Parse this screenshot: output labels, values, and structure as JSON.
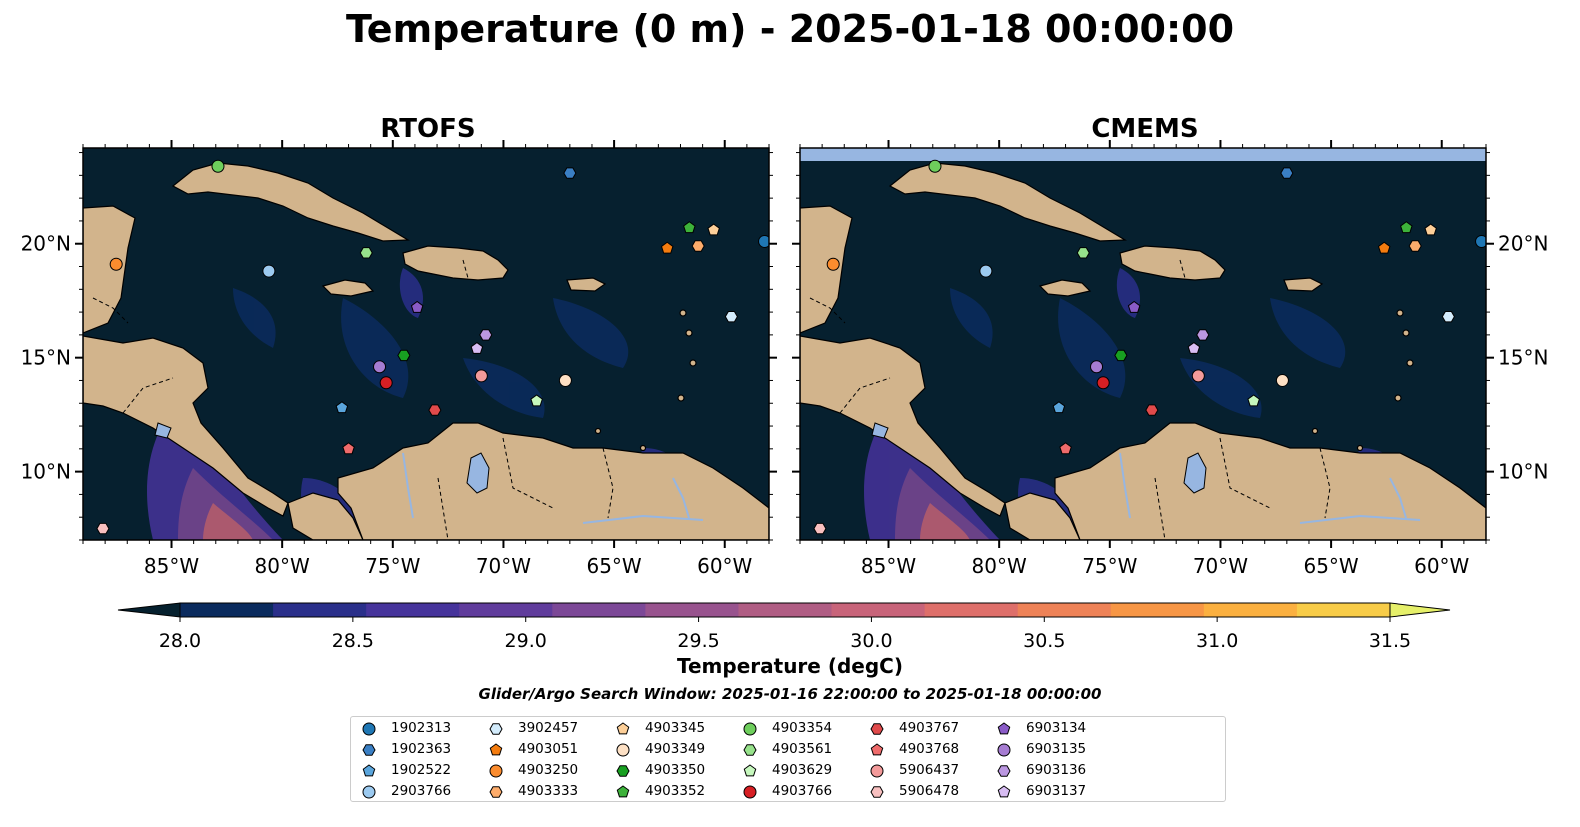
{
  "title": "Temperature (0 m) - 2025-01-18 00:00:00",
  "panels": [
    {
      "title": "RTOFS",
      "top_band": false
    },
    {
      "title": "CMEMS",
      "top_band": true
    }
  ],
  "map": {
    "lon_range": [
      -89,
      -58
    ],
    "lat_range": [
      7,
      24.2
    ],
    "lon_ticks": [
      -85,
      -80,
      -75,
      -70,
      -65,
      -60
    ],
    "lon_tick_labels": [
      "85°W",
      "80°W",
      "75°W",
      "70°W",
      "65°W",
      "60°W"
    ],
    "lat_ticks": [
      10,
      15,
      20
    ],
    "lat_tick_labels": [
      "10°N",
      "15°N",
      "20°N"
    ],
    "colors": {
      "ocean": "#06202f",
      "land": "#d2b48c",
      "lake": "#97b6e1",
      "river": "#97b6e1",
      "top_band": "#97b6e1"
    }
  },
  "colorbar": {
    "label": "Temperature (degC)",
    "min": 28.0,
    "max": 31.5,
    "tick_values": [
      28.0,
      28.5,
      29.0,
      29.5,
      30.0,
      30.5,
      31.0,
      31.5
    ],
    "tick_labels": [
      "28.0",
      "28.5",
      "29.0",
      "29.5",
      "30.0",
      "30.5",
      "31.0",
      "31.5"
    ],
    "colors": [
      "#05202e",
      "#0b2b5e",
      "#2a2f8a",
      "#46339b",
      "#603c9c",
      "#7c4897",
      "#98538e",
      "#b05d84",
      "#c8647a",
      "#de6f6a",
      "#ee8257",
      "#f79645",
      "#fbb040",
      "#f8cc48",
      "#e6f06a"
    ]
  },
  "search_window": "Glider/Argo Search Window: 2025-01-16 22:00:00 to 2025-01-18 00:00:00",
  "floats": [
    {
      "id": "1902313",
      "marker": "circle",
      "color": "#1f77b4",
      "lon": -58.2,
      "lat": 20.1
    },
    {
      "id": "1902363",
      "marker": "hexagon",
      "color": "#3a7fc4",
      "lon": -67.0,
      "lat": 23.1
    },
    {
      "id": "1902522",
      "marker": "pentagon",
      "color": "#5aa5dc",
      "lon": -77.3,
      "lat": 12.8
    },
    {
      "id": "2903766",
      "marker": "circle",
      "color": "#9ccaf0",
      "lon": -80.6,
      "lat": 18.8
    },
    {
      "id": "3902457",
      "marker": "hexagon",
      "color": "#d3ecfc",
      "lon": -59.7,
      "lat": 16.8
    },
    {
      "id": "4903051",
      "marker": "pentagon",
      "color": "#f47c0f",
      "lon": -62.6,
      "lat": 19.8
    },
    {
      "id": "4903250",
      "marker": "circle",
      "color": "#fb8c2e",
      "lon": -87.5,
      "lat": 19.1
    },
    {
      "id": "4903333",
      "marker": "hexagon",
      "color": "#fdac6b",
      "lon": -61.2,
      "lat": 19.9
    },
    {
      "id": "4903345",
      "marker": "pentagon",
      "color": "#fdcf98",
      "lon": -60.5,
      "lat": 20.6
    },
    {
      "id": "4903349",
      "marker": "circle",
      "color": "#fde0c4",
      "lon": -67.2,
      "lat": 14.0
    },
    {
      "id": "4903350",
      "marker": "hexagon",
      "color": "#18a021",
      "lon": -74.5,
      "lat": 15.1
    },
    {
      "id": "4903352",
      "marker": "pentagon",
      "color": "#3db23a",
      "lon": -61.6,
      "lat": 20.7
    },
    {
      "id": "4903354",
      "marker": "circle",
      "color": "#6ece5c",
      "lon": -82.9,
      "lat": 23.4
    },
    {
      "id": "4903561",
      "marker": "hexagon",
      "color": "#97e28b",
      "lon": -76.2,
      "lat": 19.6
    },
    {
      "id": "4903629",
      "marker": "pentagon",
      "color": "#c6f7bd",
      "lon": -68.5,
      "lat": 13.1
    },
    {
      "id": "4903766",
      "marker": "circle",
      "color": "#d71f24",
      "lon": -75.3,
      "lat": 13.9
    },
    {
      "id": "4903767",
      "marker": "hexagon",
      "color": "#e04a4b",
      "lon": -73.1,
      "lat": 12.7
    },
    {
      "id": "4903768",
      "marker": "pentagon",
      "color": "#ef6b6b",
      "lon": -77.0,
      "lat": 11.0
    },
    {
      "id": "5906437",
      "marker": "circle",
      "color": "#f39a9a",
      "lon": -71.0,
      "lat": 14.2
    },
    {
      "id": "5906478",
      "marker": "hexagon",
      "color": "#f8c0c0",
      "lon": -88.1,
      "lat": 7.5
    },
    {
      "id": "6903134",
      "marker": "pentagon",
      "color": "#8a5bc7",
      "lon": -73.9,
      "lat": 17.2
    },
    {
      "id": "6903135",
      "marker": "circle",
      "color": "#a67cd2",
      "lon": -75.6,
      "lat": 14.6
    },
    {
      "id": "6903136",
      "marker": "hexagon",
      "color": "#bb97e1",
      "lon": -70.8,
      "lat": 16.0
    },
    {
      "id": "6903137",
      "marker": "pentagon",
      "color": "#d8bdf3",
      "lon": -71.2,
      "lat": 15.4
    }
  ]
}
